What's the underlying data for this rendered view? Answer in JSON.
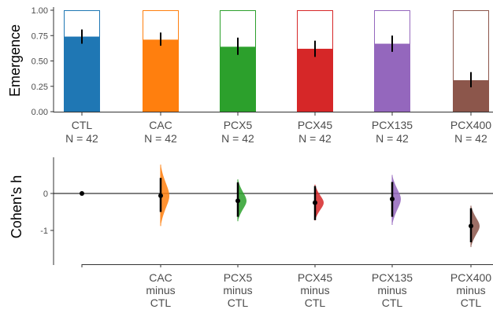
{
  "chart_data": [
    {
      "type": "bar",
      "ylabel": "Emergence",
      "ylim": [
        0,
        1
      ],
      "yticks": [
        "0.00",
        "0.25",
        "0.50",
        "0.75",
        "1.00"
      ],
      "categories": [
        {
          "name": "CTL",
          "n_label": "N = 42",
          "value": 0.74,
          "ci": [
            0.67,
            0.81
          ],
          "color": "#1f77b4"
        },
        {
          "name": "CAC",
          "n_label": "N = 42",
          "value": 0.71,
          "ci": [
            0.65,
            0.78
          ],
          "color": "#ff7f0e"
        },
        {
          "name": "PCX5",
          "n_label": "N = 42",
          "value": 0.64,
          "ci": [
            0.56,
            0.73
          ],
          "color": "#2ca02c"
        },
        {
          "name": "PCX45",
          "n_label": "N = 42",
          "value": 0.62,
          "ci": [
            0.54,
            0.7
          ],
          "color": "#d62728"
        },
        {
          "name": "PCX135",
          "n_label": "N = 42",
          "value": 0.67,
          "ci": [
            0.59,
            0.75
          ],
          "color": "#9467bd"
        },
        {
          "name": "PCX400",
          "n_label": "N = 42",
          "value": 0.31,
          "ci": [
            0.24,
            0.39
          ],
          "color": "#8c564b"
        }
      ]
    },
    {
      "type": "scatter",
      "ylabel": "Cohen's h",
      "ylim": [
        -1.9,
        0.95
      ],
      "yticks": [
        "0",
        "-1"
      ],
      "reference": {
        "value": 0
      },
      "contrasts": [
        {
          "label": [
            "CAC",
            "minus",
            "CTL"
          ],
          "color": "#ff7f0e",
          "estimate": -0.06,
          "ci": [
            -0.5,
            0.42
          ],
          "range": [
            -0.88,
            0.78
          ]
        },
        {
          "label": [
            "PCX5",
            "minus",
            "CTL"
          ],
          "color": "#2ca02c",
          "estimate": -0.2,
          "ci": [
            -0.63,
            0.3
          ],
          "range": [
            -0.75,
            0.38
          ]
        },
        {
          "label": [
            "PCX45",
            "minus",
            "CTL"
          ],
          "color": "#d62728",
          "estimate": -0.25,
          "ci": [
            -0.72,
            0.2
          ],
          "range": [
            -0.73,
            0.24
          ]
        },
        {
          "label": [
            "PCX135",
            "minus",
            "CTL"
          ],
          "color": "#9467bd",
          "estimate": -0.15,
          "ci": [
            -0.63,
            0.31
          ],
          "range": [
            -0.85,
            0.5
          ]
        },
        {
          "label": [
            "PCX400",
            "minus",
            "CTL"
          ],
          "color": "#8c564b",
          "estimate": -0.88,
          "ci": [
            -1.32,
            -0.4
          ],
          "range": [
            -1.45,
            -0.33
          ]
        }
      ]
    }
  ]
}
